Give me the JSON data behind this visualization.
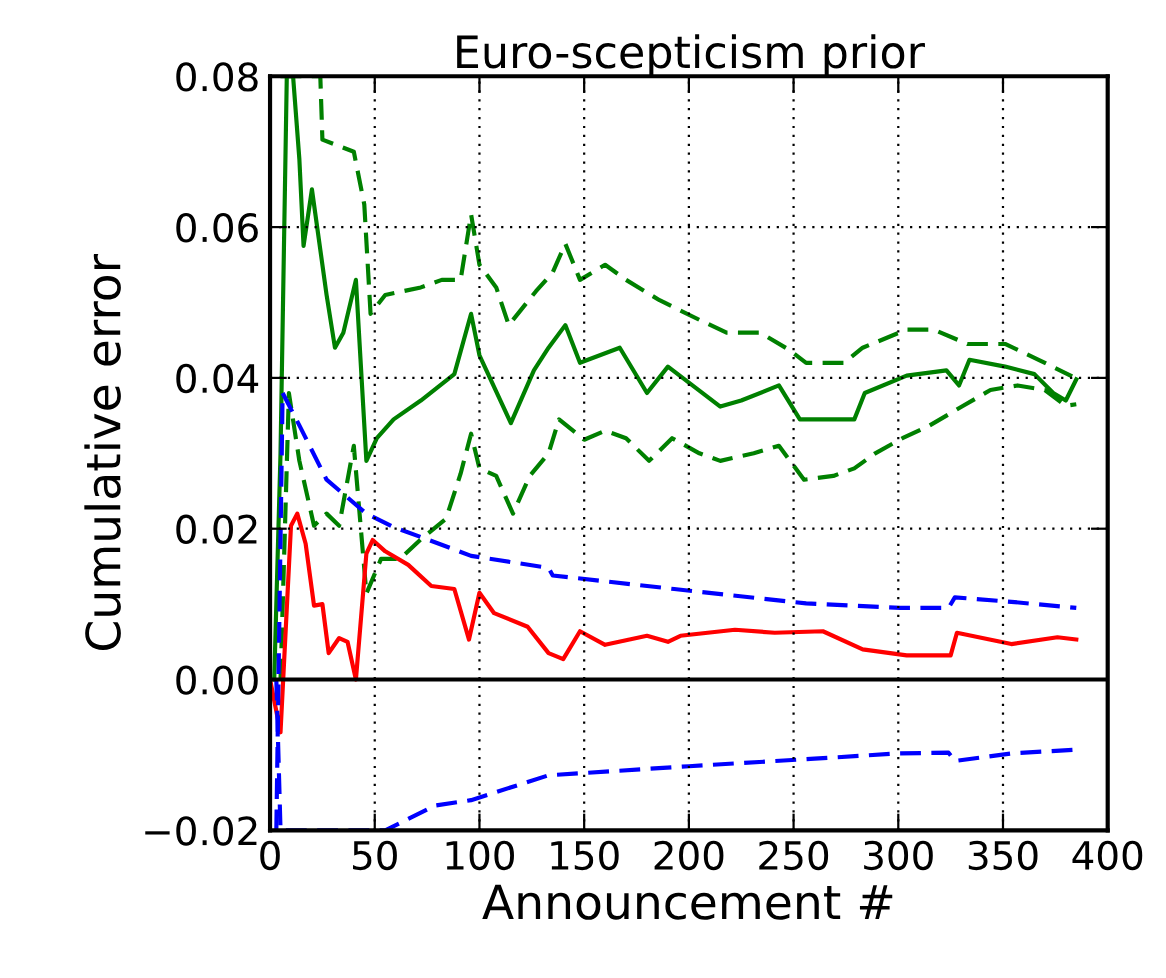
{
  "chart_data": {
    "type": "line",
    "title": "Euro-scepticism prior",
    "xlabel": "Announcement #",
    "ylabel": "Cumulative error",
    "xlim": [
      0,
      400
    ],
    "xticks": [
      0,
      50,
      100,
      150,
      200,
      250,
      300,
      350,
      400
    ],
    "ylim": [
      -0.02,
      0.08
    ],
    "yticks": [
      {
        "value": -0.02,
        "label": "−0.02"
      },
      {
        "value": 0.0,
        "label": "0.00"
      },
      {
        "value": 0.02,
        "label": "0.02"
      },
      {
        "value": 0.04,
        "label": "0.04"
      },
      {
        "value": 0.06,
        "label": "0.06"
      },
      {
        "value": 0.08,
        "label": "0.08"
      }
    ],
    "grid": true,
    "legend": false,
    "ref_lines": [
      {
        "axis": "y",
        "value": 0,
        "color": "#000000",
        "line_style": "solid"
      }
    ],
    "series": [
      {
        "color": "#008000",
        "line_style": "solid",
        "x": [
          2,
          5,
          8,
          11,
          14,
          16,
          20,
          27,
          31,
          35,
          41,
          46,
          51,
          59,
          72,
          88,
          96,
          100,
          115,
          126,
          133,
          141,
          148,
          167,
          180,
          190,
          215,
          225,
          243,
          253,
          279,
          284,
          304,
          323,
          329,
          334,
          351,
          365,
          374,
          380,
          385
        ],
        "values": [
          0.0,
          0.03,
          0.08,
          0.08,
          0.069,
          0.0575,
          0.065,
          0.051,
          0.044,
          0.046,
          0.053,
          0.029,
          0.032,
          0.0345,
          0.037,
          0.0405,
          0.0485,
          0.043,
          0.034,
          0.041,
          0.044,
          0.047,
          0.042,
          0.044,
          0.038,
          0.0415,
          0.0362,
          0.037,
          0.039,
          0.0345,
          0.0345,
          0.038,
          0.0403,
          0.041,
          0.039,
          0.0424,
          0.0415,
          0.0405,
          0.038,
          0.037,
          0.0398
        ]
      },
      {
        "color": "#008000",
        "line_style": "dashed",
        "x": [
          5,
          24,
          25,
          40,
          45,
          48,
          55,
          72,
          82,
          91,
          96,
          100,
          108,
          114,
          127,
          135,
          141,
          148,
          160,
          170,
          186,
          205,
          218,
          234,
          248,
          256,
          274,
          283,
          304,
          317,
          333,
          351,
          367,
          383
        ],
        "values": [
          0.08,
          0.08,
          0.0716,
          0.07,
          0.063,
          0.0485,
          0.051,
          0.052,
          0.053,
          0.053,
          0.0617,
          0.055,
          0.052,
          0.047,
          0.0515,
          0.054,
          0.0578,
          0.053,
          0.055,
          0.053,
          0.0503,
          0.0477,
          0.046,
          0.046,
          0.0437,
          0.042,
          0.042,
          0.044,
          0.0464,
          0.0464,
          0.0445,
          0.0445,
          0.0424,
          0.0402
        ]
      },
      {
        "color": "#008000",
        "line_style": "dashed",
        "x": [
          5,
          9,
          14,
          21,
          27,
          33,
          40,
          46,
          53,
          62,
          72,
          84,
          91,
          96,
          100,
          108,
          116,
          124,
          133,
          138,
          150,
          160,
          170,
          181,
          192,
          205,
          215,
          231,
          243,
          255,
          269,
          279,
          289,
          302,
          315,
          331,
          344,
          357,
          370,
          380,
          385
        ],
        "values": [
          0.0,
          0.038,
          0.029,
          0.0204,
          0.022,
          0.0204,
          0.031,
          0.0114,
          0.016,
          0.016,
          0.0186,
          0.0213,
          0.0273,
          0.0326,
          0.028,
          0.027,
          0.022,
          0.027,
          0.03,
          0.0345,
          0.0318,
          0.033,
          0.032,
          0.029,
          0.032,
          0.03,
          0.029,
          0.03,
          0.031,
          0.0265,
          0.027,
          0.028,
          0.03,
          0.032,
          0.0337,
          0.0363,
          0.0384,
          0.039,
          0.0384,
          0.0363,
          0.0365
        ]
      },
      {
        "color": "#ff0000",
        "line_style": "solid",
        "x": [
          0,
          5,
          10,
          13,
          17,
          21,
          25,
          28,
          33,
          37,
          41,
          46,
          49,
          55,
          66,
          77,
          88,
          95,
          100,
          107,
          123,
          133,
          140,
          148,
          160,
          180,
          190,
          196,
          222,
          241,
          264,
          283,
          304,
          325,
          328,
          354,
          376,
          385
        ],
        "values": [
          0.0,
          -0.007,
          0.0204,
          0.022,
          0.018,
          0.0098,
          0.01,
          0.0035,
          0.0055,
          0.005,
          0.0,
          0.0167,
          0.0185,
          0.017,
          0.0152,
          0.0124,
          0.012,
          0.0053,
          0.0115,
          0.0088,
          0.007,
          0.0035,
          0.0027,
          0.0064,
          0.0046,
          0.0058,
          0.005,
          0.0058,
          0.0066,
          0.0062,
          0.0064,
          0.004,
          0.0032,
          0.0032,
          0.0062,
          0.0047,
          0.0056,
          0.0053
        ]
      },
      {
        "color": "#0000ff",
        "line_style": "dashed",
        "x": [
          3,
          6,
          14,
          27,
          46,
          59,
          75,
          96,
          133,
          135,
          193,
          256,
          301,
          324,
          327,
          354,
          385
        ],
        "values": [
          -0.02,
          0.038,
          0.0337,
          0.0265,
          0.022,
          0.0202,
          0.0186,
          0.0164,
          0.0148,
          0.0138,
          0.012,
          0.0101,
          0.0095,
          0.0095,
          0.0109,
          0.0103,
          0.0095
        ]
      },
      {
        "color": "#0000ff",
        "line_style": "dashed",
        "x": [
          3,
          5,
          55,
          79,
          96,
          133,
          200,
          260,
          300,
          324,
          327,
          354,
          385
        ],
        "values": [
          0.0,
          -0.02,
          -0.02,
          -0.0167,
          -0.016,
          -0.0127,
          -0.0115,
          -0.0105,
          -0.0098,
          -0.0097,
          -0.0108,
          -0.0098,
          -0.0093
        ]
      }
    ]
  }
}
